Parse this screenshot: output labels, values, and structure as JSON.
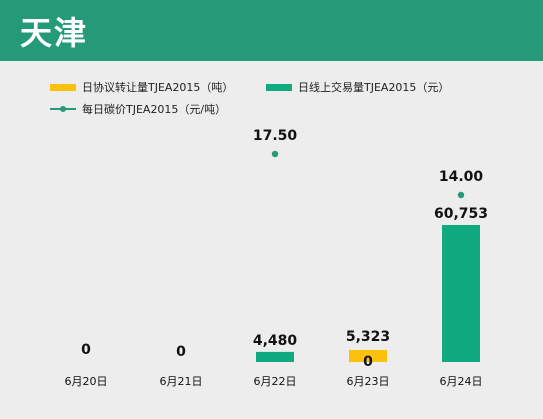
{
  "header": {
    "title": "天津"
  },
  "legend": {
    "agreement": "日协议转让量TJEA2015（吨）",
    "online": "日线上交易量TJEA2015（元）",
    "price": "每日碳价TJEA2015（元/吨）"
  },
  "colors": {
    "header": "#259a78",
    "agreement": "#fcc20b",
    "online": "#0faa80",
    "price": "#259a78"
  },
  "chart_data": {
    "type": "bar",
    "categories": [
      "6月20日",
      "6月21日",
      "6月22日",
      "6月23日",
      "6月24日"
    ],
    "series": [
      {
        "name": "日协议转让量TJEA2015（吨）",
        "values": [
          0,
          0,
          0,
          5323,
          0
        ],
        "labels": [
          "0",
          "0",
          "",
          "5,323",
          ""
        ]
      },
      {
        "name": "日线上交易量TJEA2015（元）",
        "values": [
          0,
          0,
          4480,
          0,
          60753
        ],
        "labels": [
          "",
          "",
          "4,480",
          "0",
          "60,753"
        ]
      },
      {
        "name": "每日碳价TJEA2015（元/吨）",
        "values": [
          null,
          null,
          17.5,
          null,
          14.0
        ],
        "labels": [
          "",
          "",
          "17.50",
          "",
          "14.00"
        ]
      }
    ]
  }
}
